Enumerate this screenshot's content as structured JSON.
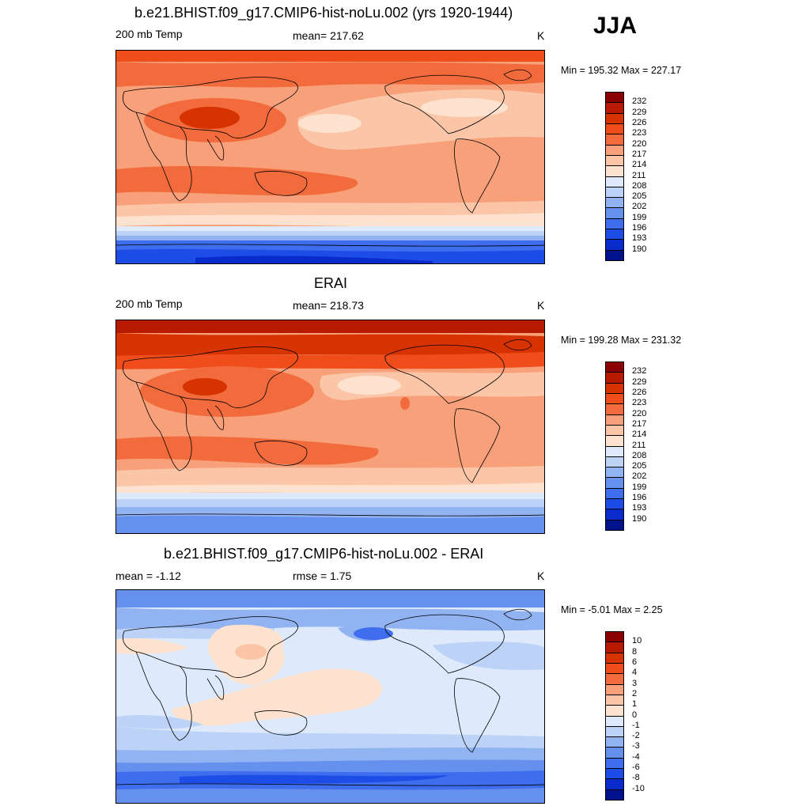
{
  "season": "JJA",
  "panels": [
    {
      "title": "b.e21.BHIST.f09_g17.CMIP6-hist-noLu.002 (yrs 1920-1944)",
      "left_label": "200 mb Temp",
      "center_label": "mean= 217.62",
      "units": "K",
      "minmax": "Min = 195.32 Max = 227.17",
      "levels": [
        "232",
        "229",
        "226",
        "223",
        "220",
        "217",
        "214",
        "211",
        "208",
        "205",
        "202",
        "199",
        "196",
        "193",
        "190"
      ]
    },
    {
      "title": "ERAI",
      "left_label": "200 mb Temp",
      "center_label": "mean= 218.73",
      "units": "K",
      "minmax": "Min = 199.28 Max = 231.32",
      "levels": [
        "232",
        "229",
        "226",
        "223",
        "220",
        "217",
        "214",
        "211",
        "208",
        "205",
        "202",
        "199",
        "196",
        "193",
        "190"
      ]
    },
    {
      "title": "b.e21.BHIST.f09_g17.CMIP6-hist-noLu.002 - ERAI",
      "left_label": "mean =  -1.12",
      "center_label": "rmse =   1.75",
      "units": "K",
      "minmax": "Min =  -5.01 Max =   2.25",
      "levels": [
        "10",
        "8",
        "6",
        "4",
        "3",
        "2",
        "1",
        "0",
        "-1",
        "-2",
        "-3",
        "-4",
        "-6",
        "-8",
        "-10"
      ]
    }
  ],
  "colors": {
    "abs": [
      "#8b0000",
      "#b81a00",
      "#d63300",
      "#ef4e1a",
      "#f26b3c",
      "#f7a07a",
      "#fbc6a8",
      "#fde3cf",
      "#deeafb",
      "#bcd3f7",
      "#91b3f2",
      "#6590ee",
      "#3e6ded",
      "#1e4ce6",
      "#0a2bcc",
      "#00128c"
    ],
    "diff": [
      "#8b0000",
      "#b81a00",
      "#d63300",
      "#ef4e1a",
      "#f26b3c",
      "#f7a07a",
      "#fbc6a8",
      "#fde3cf",
      "#deeafb",
      "#bcd3f7",
      "#91b3f2",
      "#6590ee",
      "#3e6ded",
      "#1e4ce6",
      "#0a2bcc",
      "#00128c"
    ]
  }
}
